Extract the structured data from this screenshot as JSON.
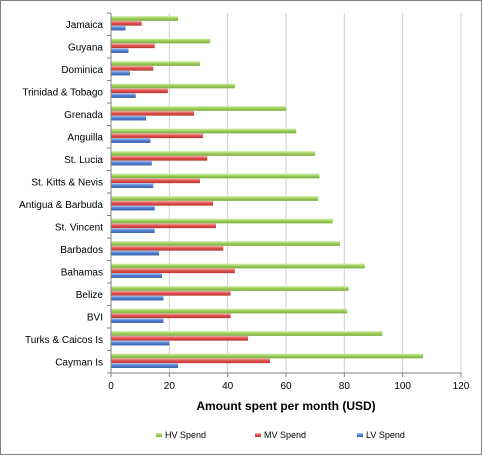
{
  "chart_data": {
    "type": "bar",
    "orientation": "horizontal",
    "title": "",
    "xlabel": "Amount spent per month (USD)",
    "ylabel": "",
    "xlim": [
      0,
      120
    ],
    "xticks": [
      0,
      20,
      40,
      60,
      80,
      100,
      120
    ],
    "grid": "vertical",
    "legend_position": "bottom",
    "categories": [
      "Jamaica",
      "Guyana",
      "Dominica",
      "Trinidad & Tobago",
      "Grenada",
      "Anguilla",
      "St. Lucia",
      "St. Kitts & Nevis",
      "Antigua & Barbuda",
      "St. Vincent",
      "Barbados",
      "Bahamas",
      "Belize",
      "BVI",
      "Turks & Caicos Is",
      "Cayman Is"
    ],
    "series": [
      {
        "name": "HV Spend",
        "color": "#9acd5a",
        "values": [
          23,
          34,
          30.5,
          42.5,
          60,
          63.5,
          70,
          71.5,
          71,
          76,
          78.5,
          87,
          81.5,
          81,
          93,
          107
        ]
      },
      {
        "name": "MV Spend",
        "color": "#e0504c",
        "values": [
          10.5,
          15,
          14.5,
          19.5,
          28.5,
          31.5,
          33,
          30.5,
          35,
          36,
          38.5,
          42.5,
          41,
          41,
          47,
          54.5
        ]
      },
      {
        "name": "LV Spend",
        "color": "#4f7fd0",
        "values": [
          5,
          6,
          6.5,
          8.5,
          12,
          13.5,
          14,
          14.5,
          15,
          15,
          16.5,
          17.5,
          18,
          18,
          20,
          23
        ]
      }
    ]
  }
}
